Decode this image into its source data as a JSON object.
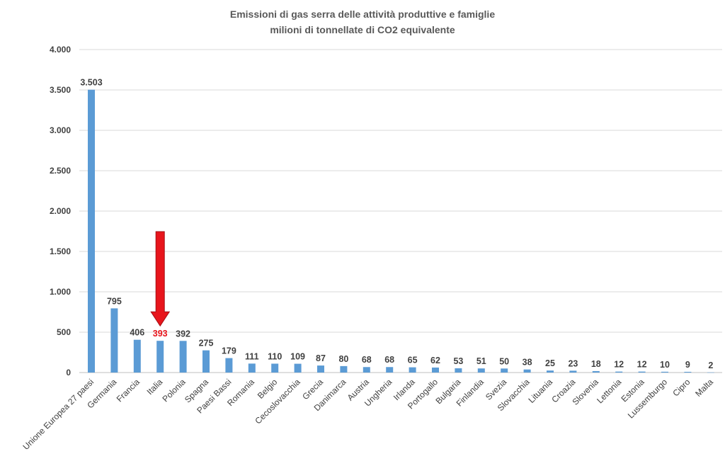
{
  "chart_data": {
    "type": "bar",
    "title": "Emissioni di gas serra delle attività produttive e famiglie",
    "subtitle": "milioni di tonnellate di CO2 equivalente",
    "xlabel": "",
    "ylabel": "",
    "ylim": [
      0,
      4000
    ],
    "yticks": [
      0,
      500,
      1000,
      1500,
      2000,
      2500,
      3000,
      3500,
      4000
    ],
    "ytick_labels": [
      "0",
      "500",
      "1.000",
      "1.500",
      "2.000",
      "2.500",
      "3.000",
      "3.500",
      "4.000"
    ],
    "grid": true,
    "legend": "none",
    "bar_color": "#5b9bd5",
    "highlight_color": "#e8151c",
    "highlight_category": "Italia",
    "categories": [
      "Unione Europea 27 paesi",
      "Germania",
      "Francia",
      "Italia",
      "Polonia",
      "Spagna",
      "Paesi Bassi",
      "Romania",
      "Belgio",
      "Cecoslovacchia",
      "Grecia",
      "Danimarca",
      "Austria",
      "Ungheria",
      "Irlanda",
      "Portogallo",
      "Bulgaria",
      "Finlandia",
      "Svezia",
      "Slovacchia",
      "Lituania",
      "Croazia",
      "Slovenia",
      "Lettonia",
      "Estonia",
      "Lussemburgo",
      "Cipro",
      "Malta"
    ],
    "values": [
      3503,
      795,
      406,
      393,
      392,
      275,
      179,
      111,
      110,
      109,
      87,
      80,
      68,
      68,
      65,
      62,
      53,
      51,
      50,
      38,
      25,
      23,
      18,
      12,
      12,
      10,
      9,
      2
    ],
    "value_labels": [
      "3.503",
      "795",
      "406",
      "393",
      "392",
      "275",
      "179",
      "111",
      "110",
      "109",
      "87",
      "80",
      "68",
      "68",
      "65",
      "62",
      "53",
      "51",
      "50",
      "38",
      "25",
      "23",
      "18",
      "12",
      "12",
      "10",
      "9",
      "2"
    ],
    "annotations": [
      {
        "type": "arrow",
        "target_category": "Italia",
        "color": "#e8151c",
        "direction": "down"
      }
    ]
  }
}
